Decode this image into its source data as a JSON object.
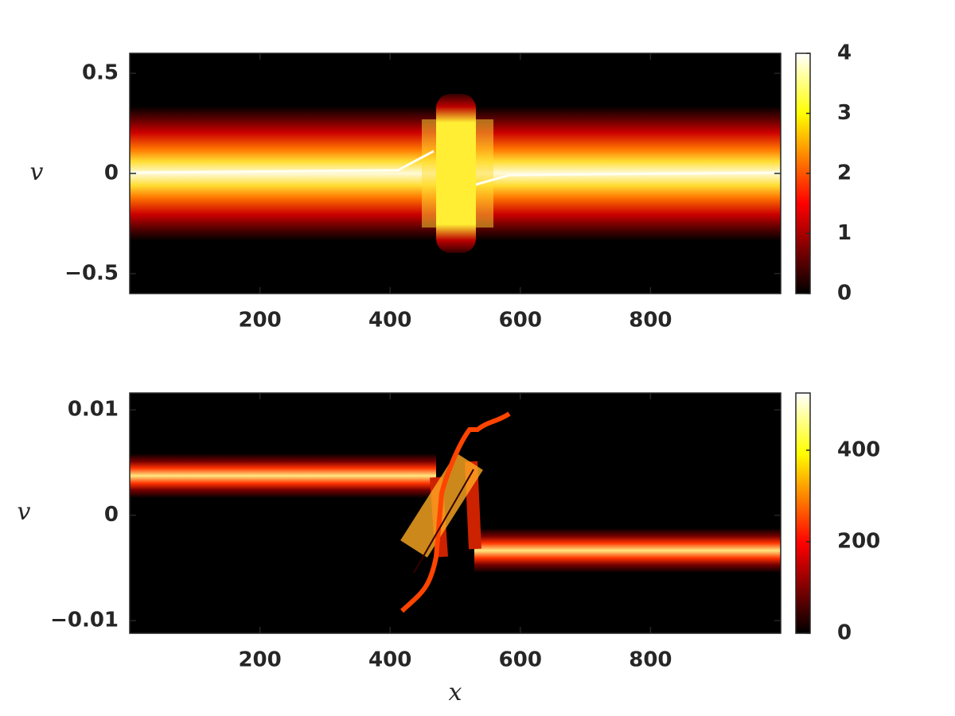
{
  "chart_data": [
    {
      "type": "heatmap",
      "ylabel": "v",
      "colormap": "hot",
      "xlim": [
        0,
        1000
      ],
      "xticks": [
        200,
        400,
        600,
        800
      ],
      "ylim": [
        -0.6,
        0.6
      ],
      "yticks": [
        {
          "value": -0.5,
          "label": "−0.5"
        },
        0,
        0.5
      ],
      "clim": [
        0,
        4
      ],
      "cticks": [
        0,
        1,
        2,
        3,
        4
      ]
    },
    {
      "type": "heatmap",
      "ylabel": "v",
      "xlabel": "x",
      "colormap": "hot",
      "xlim": [
        0,
        1000
      ],
      "xticks": [
        200,
        400,
        600,
        800
      ],
      "ylim": [
        -0.0112,
        0.0116
      ],
      "yticks": [
        {
          "value": -0.01,
          "label": "−0.01"
        },
        0,
        0.01
      ],
      "clim": [
        0,
        525
      ],
      "cticks": [
        0,
        200,
        400
      ]
    }
  ]
}
